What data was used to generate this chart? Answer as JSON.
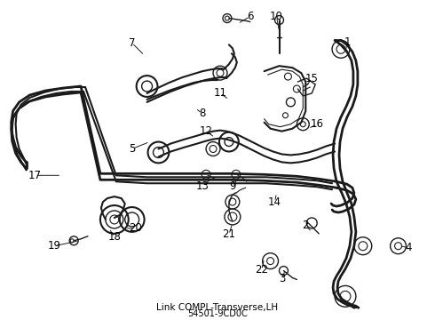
{
  "title": "Link COMPL-Transverse,LH",
  "part_number": "54501-9CD0C",
  "bg_color": "#ffffff",
  "line_color": "#1a1a1a",
  "label_color": "#000000",
  "figsize": [
    4.9,
    3.6
  ],
  "dpi": 100,
  "label_data": [
    [
      "1",
      392,
      47,
      390,
      60
    ],
    [
      "2",
      345,
      255,
      352,
      262
    ],
    [
      "3",
      318,
      315,
      322,
      305
    ],
    [
      "4",
      462,
      280,
      452,
      278
    ],
    [
      "5",
      148,
      168,
      168,
      160
    ],
    [
      "6",
      282,
      18,
      268,
      26
    ],
    [
      "7",
      148,
      48,
      162,
      62
    ],
    [
      "8",
      228,
      128,
      220,
      122
    ],
    [
      "9",
      262,
      210,
      268,
      202
    ],
    [
      "10",
      312,
      18,
      315,
      35
    ],
    [
      "11",
      248,
      105,
      258,
      112
    ],
    [
      "12",
      232,
      148,
      242,
      155
    ],
    [
      "13",
      228,
      210,
      238,
      202
    ],
    [
      "14",
      310,
      228,
      312,
      218
    ],
    [
      "15",
      352,
      88,
      345,
      98
    ],
    [
      "16",
      358,
      140,
      348,
      145
    ],
    [
      "17",
      38,
      198,
      68,
      198
    ],
    [
      "18",
      128,
      268,
      122,
      258
    ],
    [
      "19",
      60,
      278,
      88,
      272
    ],
    [
      "20",
      152,
      258,
      140,
      258
    ],
    [
      "21",
      258,
      265,
      262,
      252
    ],
    [
      "22",
      295,
      305,
      298,
      292
    ]
  ]
}
